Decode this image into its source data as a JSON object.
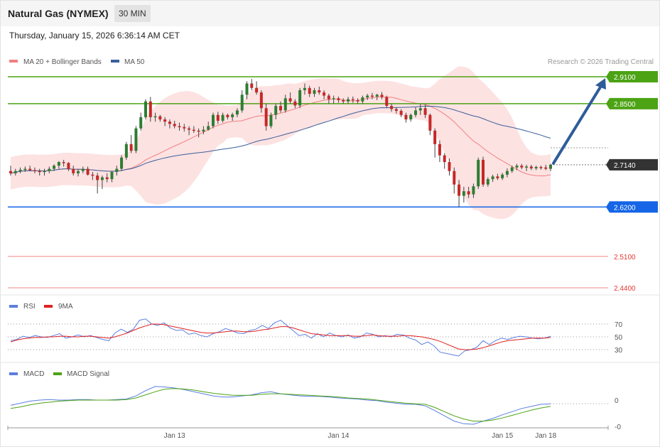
{
  "header": {
    "title": "Natural Gas (NYMEX)",
    "timeframe": "30 MIN",
    "timestamp": "Thursday, January 15, 2026 6:36:14 AM CET"
  },
  "chart_data": [
    {
      "type": "candlestick",
      "legend": [
        {
          "label": "MA 20 + Bollinger Bands",
          "color": "#f08080"
        },
        {
          "label": "MA 50",
          "color": "#3a5f9a"
        }
      ],
      "credit": "Research © 2026 Trading Central",
      "current_price": "2.7140",
      "levels": [
        {
          "value": "2.9100",
          "kind": "resistance",
          "color": "#4ca314"
        },
        {
          "value": "2.8500",
          "kind": "resistance",
          "color": "#4ca314"
        },
        {
          "value": "2.6200",
          "kind": "pivot",
          "color": "#1565e6"
        },
        {
          "value": "2.5100",
          "kind": "support",
          "color": "#e53935"
        },
        {
          "value": "2.4400",
          "kind": "support",
          "color": "#e53935"
        }
      ],
      "ohlc": [
        [
          2.7,
          2.712,
          2.69,
          2.695
        ],
        [
          2.695,
          2.705,
          2.69,
          2.7
        ],
        [
          2.7,
          2.708,
          2.695,
          2.703
        ],
        [
          2.703,
          2.71,
          2.698,
          2.705
        ],
        [
          2.705,
          2.712,
          2.7,
          2.702
        ],
        [
          2.702,
          2.708,
          2.695,
          2.7
        ],
        [
          2.7,
          2.705,
          2.69,
          2.698
        ],
        [
          2.698,
          2.705,
          2.69,
          2.7
        ],
        [
          2.7,
          2.71,
          2.695,
          2.705
        ],
        [
          2.705,
          2.715,
          2.7,
          2.712
        ],
        [
          2.712,
          2.722,
          2.705,
          2.72
        ],
        [
          2.72,
          2.725,
          2.71,
          2.718
        ],
        [
          2.718,
          2.72,
          2.7,
          2.705
        ],
        [
          2.705,
          2.712,
          2.69,
          2.695
        ],
        [
          2.695,
          2.705,
          2.688,
          2.7
        ],
        [
          2.7,
          2.71,
          2.695,
          2.705
        ],
        [
          2.705,
          2.71,
          2.69,
          2.692
        ],
        [
          2.692,
          2.698,
          2.68,
          2.69
        ],
        [
          2.69,
          2.696,
          2.65,
          2.68
        ],
        [
          2.68,
          2.69,
          2.66,
          2.686
        ],
        [
          2.686,
          2.695,
          2.675,
          2.682
        ],
        [
          2.682,
          2.7,
          2.675,
          2.698
        ],
        [
          2.698,
          2.712,
          2.69,
          2.705
        ],
        [
          2.705,
          2.735,
          2.7,
          2.73
        ],
        [
          2.73,
          2.765,
          2.725,
          2.76
        ],
        [
          2.76,
          2.78,
          2.74,
          2.745
        ],
        [
          2.745,
          2.8,
          2.74,
          2.795
        ],
        [
          2.795,
          2.83,
          2.79,
          2.82
        ],
        [
          2.82,
          2.86,
          2.815,
          2.855
        ],
        [
          2.855,
          2.865,
          2.81,
          2.82
        ],
        [
          2.82,
          2.83,
          2.81,
          2.822
        ],
        [
          2.822,
          2.825,
          2.81,
          2.815
        ],
        [
          2.815,
          2.82,
          2.8,
          2.81
        ],
        [
          2.81,
          2.815,
          2.795,
          2.805
        ],
        [
          2.805,
          2.812,
          2.795,
          2.8
        ],
        [
          2.8,
          2.808,
          2.79,
          2.798
        ],
        [
          2.798,
          2.805,
          2.788,
          2.795
        ],
        [
          2.795,
          2.8,
          2.78,
          2.792
        ],
        [
          2.792,
          2.8,
          2.785,
          2.79
        ],
        [
          2.79,
          2.795,
          2.775,
          2.788
        ],
        [
          2.788,
          2.8,
          2.782,
          2.792
        ],
        [
          2.792,
          2.81,
          2.79,
          2.8
        ],
        [
          2.8,
          2.83,
          2.795,
          2.825
        ],
        [
          2.825,
          2.832,
          2.805,
          2.812
        ],
        [
          2.812,
          2.83,
          2.808,
          2.825
        ],
        [
          2.825,
          2.828,
          2.815,
          2.82
        ],
        [
          2.82,
          2.83,
          2.812,
          2.826
        ],
        [
          2.826,
          2.84,
          2.82,
          2.835
        ],
        [
          2.835,
          2.88,
          2.83,
          2.87
        ],
        [
          2.87,
          2.9,
          2.86,
          2.895
        ],
        [
          2.895,
          2.905,
          2.88,
          2.885
        ],
        [
          2.885,
          2.9,
          2.87,
          2.875
        ],
        [
          2.875,
          2.88,
          2.83,
          2.84
        ],
        [
          2.84,
          2.85,
          2.79,
          2.8
        ],
        [
          2.8,
          2.83,
          2.795,
          2.825
        ],
        [
          2.825,
          2.85,
          2.815,
          2.845
        ],
        [
          2.845,
          2.855,
          2.83,
          2.835
        ],
        [
          2.835,
          2.87,
          2.83,
          2.862
        ],
        [
          2.862,
          2.875,
          2.85,
          2.855
        ],
        [
          2.855,
          2.86,
          2.84,
          2.846
        ],
        [
          2.846,
          2.885,
          2.84,
          2.88
        ],
        [
          2.88,
          2.895,
          2.87,
          2.885
        ],
        [
          2.885,
          2.89,
          2.865,
          2.872
        ],
        [
          2.872,
          2.885,
          2.865,
          2.88
        ],
        [
          2.88,
          2.888,
          2.87,
          2.875
        ],
        [
          2.875,
          2.88,
          2.86,
          2.868
        ],
        [
          2.868,
          2.872,
          2.85,
          2.86
        ],
        [
          2.86,
          2.868,
          2.85,
          2.862
        ],
        [
          2.862,
          2.866,
          2.852,
          2.858
        ],
        [
          2.858,
          2.862,
          2.85,
          2.855
        ],
        [
          2.855,
          2.865,
          2.85,
          2.86
        ],
        [
          2.86,
          2.866,
          2.852,
          2.858
        ],
        [
          2.858,
          2.862,
          2.85,
          2.855
        ],
        [
          2.855,
          2.868,
          2.85,
          2.864
        ],
        [
          2.864,
          2.872,
          2.858,
          2.868
        ],
        [
          2.868,
          2.874,
          2.86,
          2.866
        ],
        [
          2.866,
          2.872,
          2.858,
          2.87
        ],
        [
          2.87,
          2.876,
          2.86,
          2.865
        ],
        [
          2.865,
          2.868,
          2.84,
          2.845
        ],
        [
          2.845,
          2.85,
          2.832,
          2.838
        ],
        [
          2.838,
          2.842,
          2.828,
          2.834
        ],
        [
          2.834,
          2.838,
          2.82,
          2.825
        ],
        [
          2.825,
          2.83,
          2.808,
          2.815
        ],
        [
          2.815,
          2.828,
          2.81,
          2.825
        ],
        [
          2.825,
          2.842,
          2.82,
          2.835
        ],
        [
          2.835,
          2.85,
          2.825,
          2.84
        ],
        [
          2.84,
          2.848,
          2.818,
          2.825
        ],
        [
          2.825,
          2.828,
          2.78,
          2.79
        ],
        [
          2.79,
          2.795,
          2.73,
          2.76
        ],
        [
          2.76,
          2.768,
          2.72,
          2.735
        ],
        [
          2.735,
          2.74,
          2.705,
          2.72
        ],
        [
          2.72,
          2.728,
          2.69,
          2.7
        ],
        [
          2.7,
          2.708,
          2.65,
          2.67
        ],
        [
          2.67,
          2.68,
          2.62,
          2.645
        ],
        [
          2.645,
          2.665,
          2.63,
          2.655
        ],
        [
          2.655,
          2.665,
          2.64,
          2.648
        ],
        [
          2.648,
          2.672,
          2.64,
          2.666
        ],
        [
          2.666,
          2.73,
          2.66,
          2.725
        ],
        [
          2.725,
          2.732,
          2.665,
          2.67
        ],
        [
          2.67,
          2.686,
          2.665,
          2.682
        ],
        [
          2.682,
          2.692,
          2.676,
          2.688
        ],
        [
          2.688,
          2.694,
          2.68,
          2.684
        ],
        [
          2.684,
          2.696,
          2.68,
          2.692
        ],
        [
          2.692,
          2.706,
          2.686,
          2.7
        ],
        [
          2.7,
          2.712,
          2.696,
          2.708
        ],
        [
          2.708,
          2.716,
          2.702,
          2.712
        ],
        [
          2.712,
          2.716,
          2.704,
          2.708
        ],
        [
          2.708,
          2.714,
          2.7,
          2.71
        ],
        [
          2.71,
          2.714,
          2.702,
          2.706
        ],
        [
          2.706,
          2.712,
          2.702,
          2.709
        ],
        [
          2.709,
          2.712,
          2.703,
          2.708
        ],
        [
          2.708,
          2.714,
          2.702,
          2.705
        ],
        [
          2.705,
          2.716,
          2.7,
          2.714
        ]
      ],
      "ylim": [
        2.42,
        2.94
      ],
      "x_ticks": [
        {
          "index": 34,
          "label": "Jan 13"
        },
        {
          "index": 68,
          "label": "Jan 14"
        },
        {
          "index": 102,
          "label": "Jan 15"
        },
        {
          "index": 111,
          "label": "Jan 18"
        }
      ],
      "projection": {
        "from_value": 2.714,
        "to_value": 2.91
      }
    },
    {
      "type": "line",
      "legend": [
        {
          "label": "RSI",
          "color": "#5b7fe0"
        },
        {
          "label": "9MA",
          "color": "#e02020"
        }
      ],
      "y_ticks": [
        "70",
        "50",
        "30"
      ],
      "ylim": [
        10,
        90
      ],
      "series": [
        {
          "name": "RSI",
          "values": [
            44,
            46,
            51,
            49,
            52,
            50,
            49,
            52,
            55,
            48,
            50,
            53,
            50,
            52,
            49,
            46,
            44,
            56,
            62,
            57,
            62,
            76,
            78,
            70,
            68,
            72,
            64,
            60,
            61,
            54,
            56,
            52,
            50,
            55,
            58,
            63,
            60,
            56,
            55,
            60,
            62,
            68,
            63,
            72,
            76,
            68,
            60,
            52,
            54,
            48,
            55,
            50,
            56,
            52,
            50,
            53,
            48,
            50,
            56,
            54,
            50,
            52,
            50,
            54,
            53,
            48,
            45,
            38,
            42,
            36,
            26,
            24,
            22,
            20,
            28,
            30,
            34,
            44,
            38,
            44,
            48,
            46,
            49,
            51,
            50,
            48,
            47,
            48,
            51
          ]
        },
        {
          "name": "9MA",
          "values": [
            42,
            45,
            47,
            48,
            49,
            49,
            50,
            50,
            51,
            51,
            50,
            50,
            51,
            51,
            50,
            49,
            48,
            50,
            53,
            56,
            60,
            64,
            67,
            70,
            70,
            69,
            67,
            65,
            63,
            61,
            59,
            57,
            56,
            56,
            57,
            58,
            59,
            59,
            58,
            58,
            59,
            61,
            62,
            64,
            66,
            66,
            64,
            61,
            58,
            55,
            54,
            53,
            52,
            52,
            52,
            52,
            51,
            51,
            52,
            53,
            52,
            51,
            51,
            51,
            52,
            52,
            51,
            50,
            48,
            46,
            43,
            39,
            35,
            31,
            30,
            30,
            31,
            33,
            36,
            39,
            42,
            44,
            45,
            46,
            47,
            48,
            48,
            48,
            49
          ]
        }
      ]
    },
    {
      "type": "line",
      "legend": [
        {
          "label": "MACD",
          "color": "#5b7fe0"
        },
        {
          "label": "MACD Signal",
          "color": "#4ca314"
        }
      ],
      "y_ticks": [
        "0",
        "-0"
      ],
      "ylim": [
        -0.06,
        0.04
      ],
      "series": [
        {
          "name": "MACD",
          "values": [
            -0.01,
            -0.006,
            -0.002,
            0.0,
            0.001,
            0.0,
            0.0,
            0.001,
            0.001,
            0.0,
            0.0,
            0.001,
            0.002,
            0.008,
            0.018,
            0.026,
            0.025,
            0.023,
            0.02,
            0.016,
            0.012,
            0.008,
            0.006,
            0.006,
            0.008,
            0.01,
            0.014,
            0.016,
            0.012,
            0.01,
            0.008,
            0.007,
            0.007,
            0.006,
            0.004,
            0.003,
            0.002,
            0.0,
            -0.001,
            -0.004,
            -0.006,
            -0.008,
            -0.008,
            -0.011,
            -0.02,
            -0.03,
            -0.04,
            -0.045,
            -0.046,
            -0.04,
            -0.035,
            -0.028,
            -0.022,
            -0.016,
            -0.012,
            -0.008,
            -0.007
          ]
        },
        {
          "name": "MACD Signal",
          "values": [
            -0.016,
            -0.013,
            -0.009,
            -0.006,
            -0.004,
            -0.002,
            -0.001,
            0.0,
            0.0,
            0.0,
            0.0,
            0.0,
            0.001,
            0.004,
            0.01,
            0.016,
            0.021,
            0.022,
            0.021,
            0.019,
            0.016,
            0.013,
            0.011,
            0.009,
            0.009,
            0.009,
            0.011,
            0.012,
            0.012,
            0.011,
            0.01,
            0.009,
            0.008,
            0.007,
            0.006,
            0.004,
            0.003,
            0.002,
            0.0,
            -0.002,
            -0.004,
            -0.006,
            -0.007,
            -0.008,
            -0.014,
            -0.022,
            -0.03,
            -0.036,
            -0.04,
            -0.04,
            -0.038,
            -0.034,
            -0.029,
            -0.024,
            -0.019,
            -0.015,
            -0.012
          ]
        }
      ],
      "x_ticks": [
        {
          "index": 34,
          "label": "Jan 13"
        },
        {
          "index": 68,
          "label": "Jan 14"
        },
        {
          "index": 102,
          "label": "Jan 15"
        },
        {
          "index": 111,
          "label": "Jan 18"
        }
      ]
    }
  ]
}
